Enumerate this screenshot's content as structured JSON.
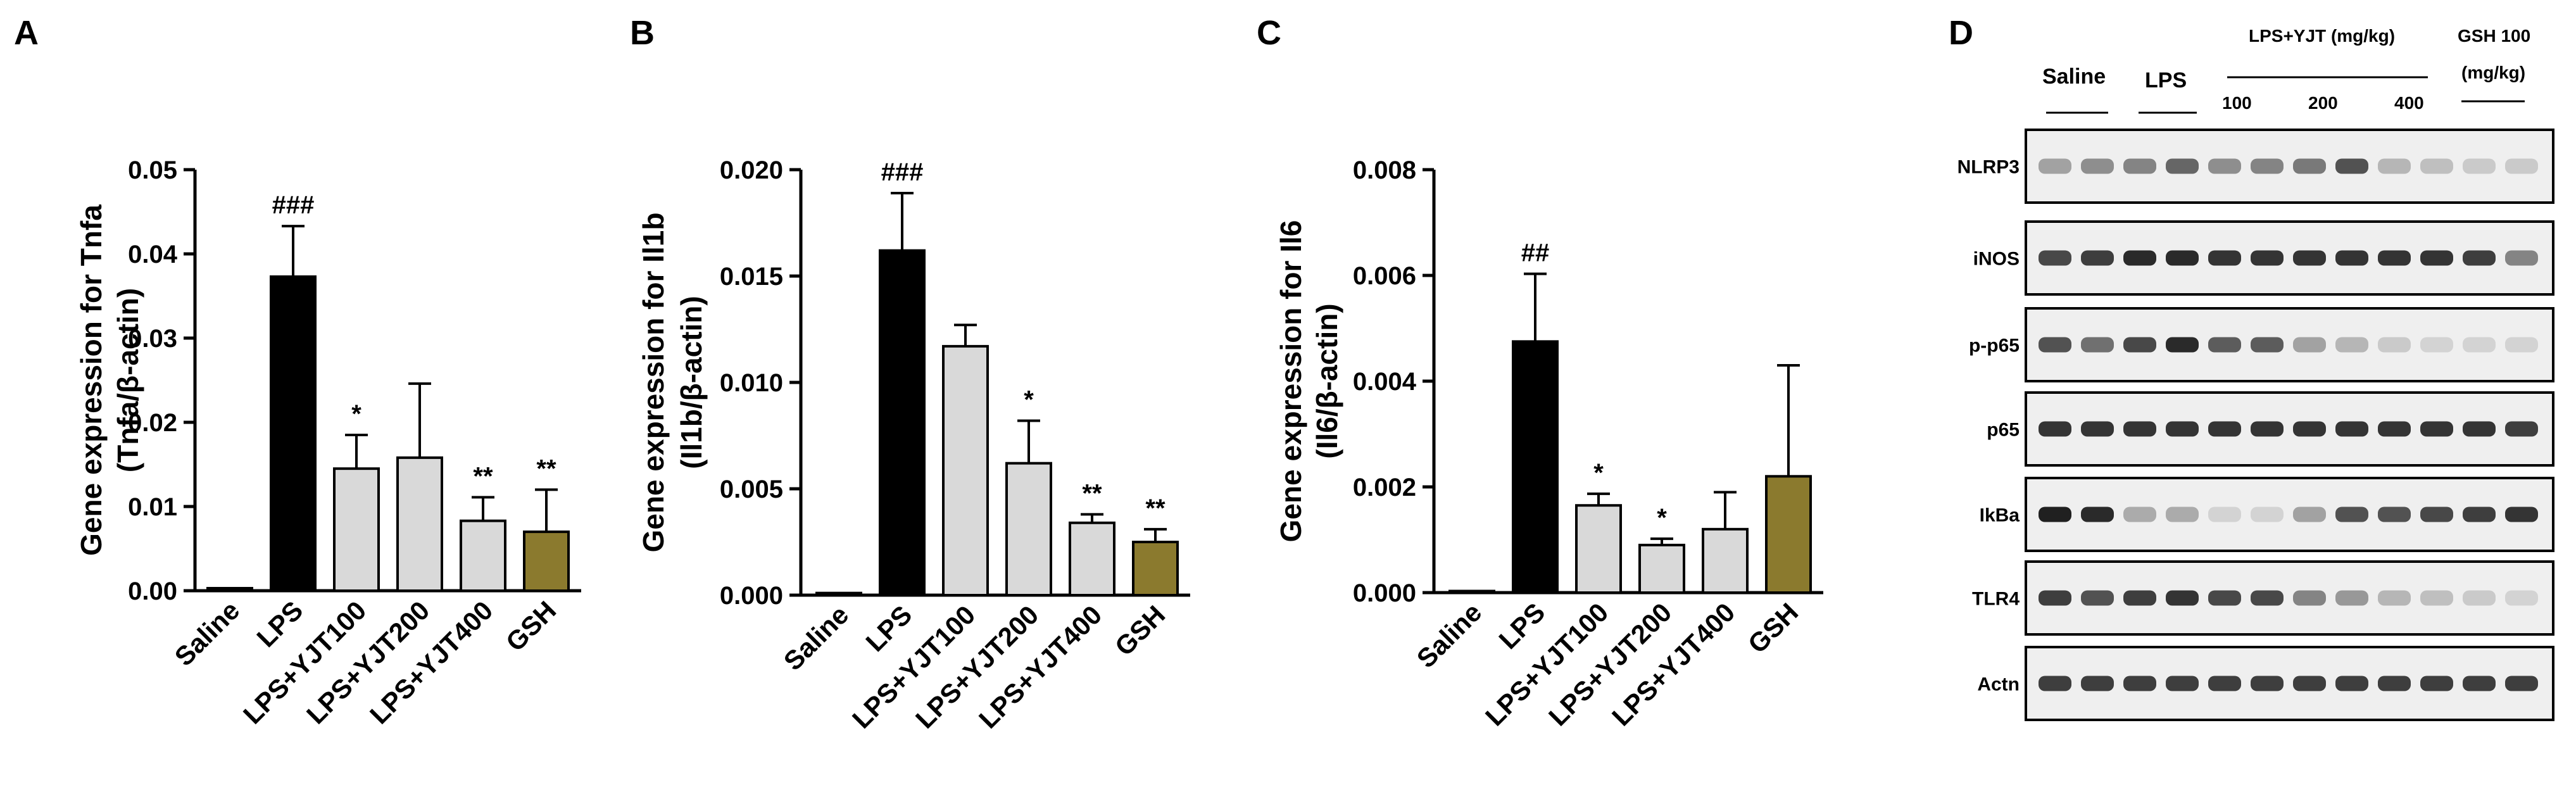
{
  "panels": [
    "A",
    "B",
    "C",
    "D"
  ],
  "colors": {
    "saline": "#ffffff",
    "lps": "#000000",
    "yjt": "#d9d9d9",
    "gsh": "#8b7a2e"
  },
  "chart_data": [
    {
      "type": "bar",
      "panel": "A",
      "ylabel_line1": "Gene expression for Tnfa",
      "ylabel_line2": "(Tnfa/β-actin)",
      "categories": [
        "Saline",
        "LPS",
        "LPS+YJT100",
        "LPS+YJT200",
        "LPS+YJT400",
        "GSH"
      ],
      "values": [
        0.0003,
        0.0373,
        0.0145,
        0.0158,
        0.0083,
        0.007
      ],
      "errors": [
        0.0001,
        0.006,
        0.004,
        0.0088,
        0.0028,
        0.005
      ],
      "significance": [
        "",
        "###",
        "*",
        "",
        "**",
        "**"
      ],
      "ylim": [
        0,
        0.05
      ],
      "ticks": [
        0,
        0.01,
        0.02,
        0.03,
        0.04,
        0.05
      ],
      "tick_labels": [
        "0.00",
        "0.01",
        "0.02",
        "0.03",
        "0.04",
        "0.05"
      ]
    },
    {
      "type": "bar",
      "panel": "B",
      "ylabel_line1": "Gene expression for Il1b",
      "ylabel_line2": "(Il1b/β-actin)",
      "categories": [
        "Saline",
        "LPS",
        "LPS+YJT100",
        "LPS+YJT200",
        "LPS+YJT400",
        "GSH"
      ],
      "values": [
        0.0001,
        0.0162,
        0.0117,
        0.0062,
        0.0034,
        0.0025
      ],
      "errors": [
        5e-05,
        0.0027,
        0.001,
        0.002,
        0.0004,
        0.0006
      ],
      "significance": [
        "",
        "###",
        "",
        "*",
        "**",
        "**"
      ],
      "ylim": [
        0,
        0.02
      ],
      "ticks": [
        0,
        0.005,
        0.01,
        0.015,
        0.02
      ],
      "tick_labels": [
        "0.000",
        "0.005",
        "0.010",
        "0.015",
        "0.020"
      ]
    },
    {
      "type": "bar",
      "panel": "C",
      "ylabel_line1": "Gene expression for Il6",
      "ylabel_line2": "(Il6/β-actin)",
      "categories": [
        "Saline",
        "LPS",
        "LPS+YJT100",
        "LPS+YJT200",
        "LPS+YJT400",
        "GSH"
      ],
      "values": [
        3e-05,
        0.00475,
        0.00165,
        0.0009,
        0.0012,
        0.0022
      ],
      "errors": [
        1e-05,
        0.00128,
        0.00022,
        0.00012,
        0.0007,
        0.0021
      ],
      "significance": [
        "",
        "##",
        "*",
        "*",
        "",
        ""
      ],
      "ylim": [
        0,
        0.008
      ],
      "ticks": [
        0,
        0.002,
        0.004,
        0.006,
        0.008
      ],
      "tick_labels": [
        "0.000",
        "0.002",
        "0.004",
        "0.006",
        "0.008"
      ]
    }
  ],
  "western_blot": {
    "headers": {
      "saline": "Saline",
      "lps": "LPS",
      "yjt_group": "LPS+YJT (mg/kg)",
      "dose_100": "100",
      "dose_200": "200",
      "dose_400": "400",
      "gsh_line1": "GSH 100",
      "gsh_line2": "(mg/kg)"
    },
    "rows": [
      {
        "label": "NLRP3",
        "intensity": [
          0.35,
          0.45,
          0.5,
          0.65,
          0.45,
          0.5,
          0.55,
          0.75,
          0.25,
          0.2,
          0.15,
          0.15
        ]
      },
      {
        "label": "iNOS",
        "intensity": [
          0.8,
          0.85,
          0.95,
          0.95,
          0.9,
          0.9,
          0.9,
          0.9,
          0.9,
          0.9,
          0.85,
          0.5
        ]
      },
      {
        "label": "p-p65",
        "intensity": [
          0.75,
          0.6,
          0.8,
          0.95,
          0.7,
          0.7,
          0.35,
          0.25,
          0.15,
          0.1,
          0.1,
          0.1
        ]
      },
      {
        "label": "p65",
        "intensity": [
          0.9,
          0.9,
          0.9,
          0.9,
          0.9,
          0.9,
          0.9,
          0.9,
          0.9,
          0.9,
          0.9,
          0.85
        ]
      },
      {
        "label": "IkBa",
        "intensity": [
          1.0,
          0.95,
          0.3,
          0.3,
          0.1,
          0.1,
          0.35,
          0.75,
          0.75,
          0.8,
          0.85,
          0.9
        ]
      },
      {
        "label": "TLR4",
        "intensity": [
          0.85,
          0.75,
          0.85,
          0.9,
          0.8,
          0.8,
          0.5,
          0.4,
          0.25,
          0.2,
          0.15,
          0.1
        ]
      },
      {
        "label": "Actn",
        "intensity": [
          0.85,
          0.85,
          0.85,
          0.85,
          0.85,
          0.85,
          0.85,
          0.85,
          0.85,
          0.85,
          0.85,
          0.85
        ]
      }
    ]
  }
}
